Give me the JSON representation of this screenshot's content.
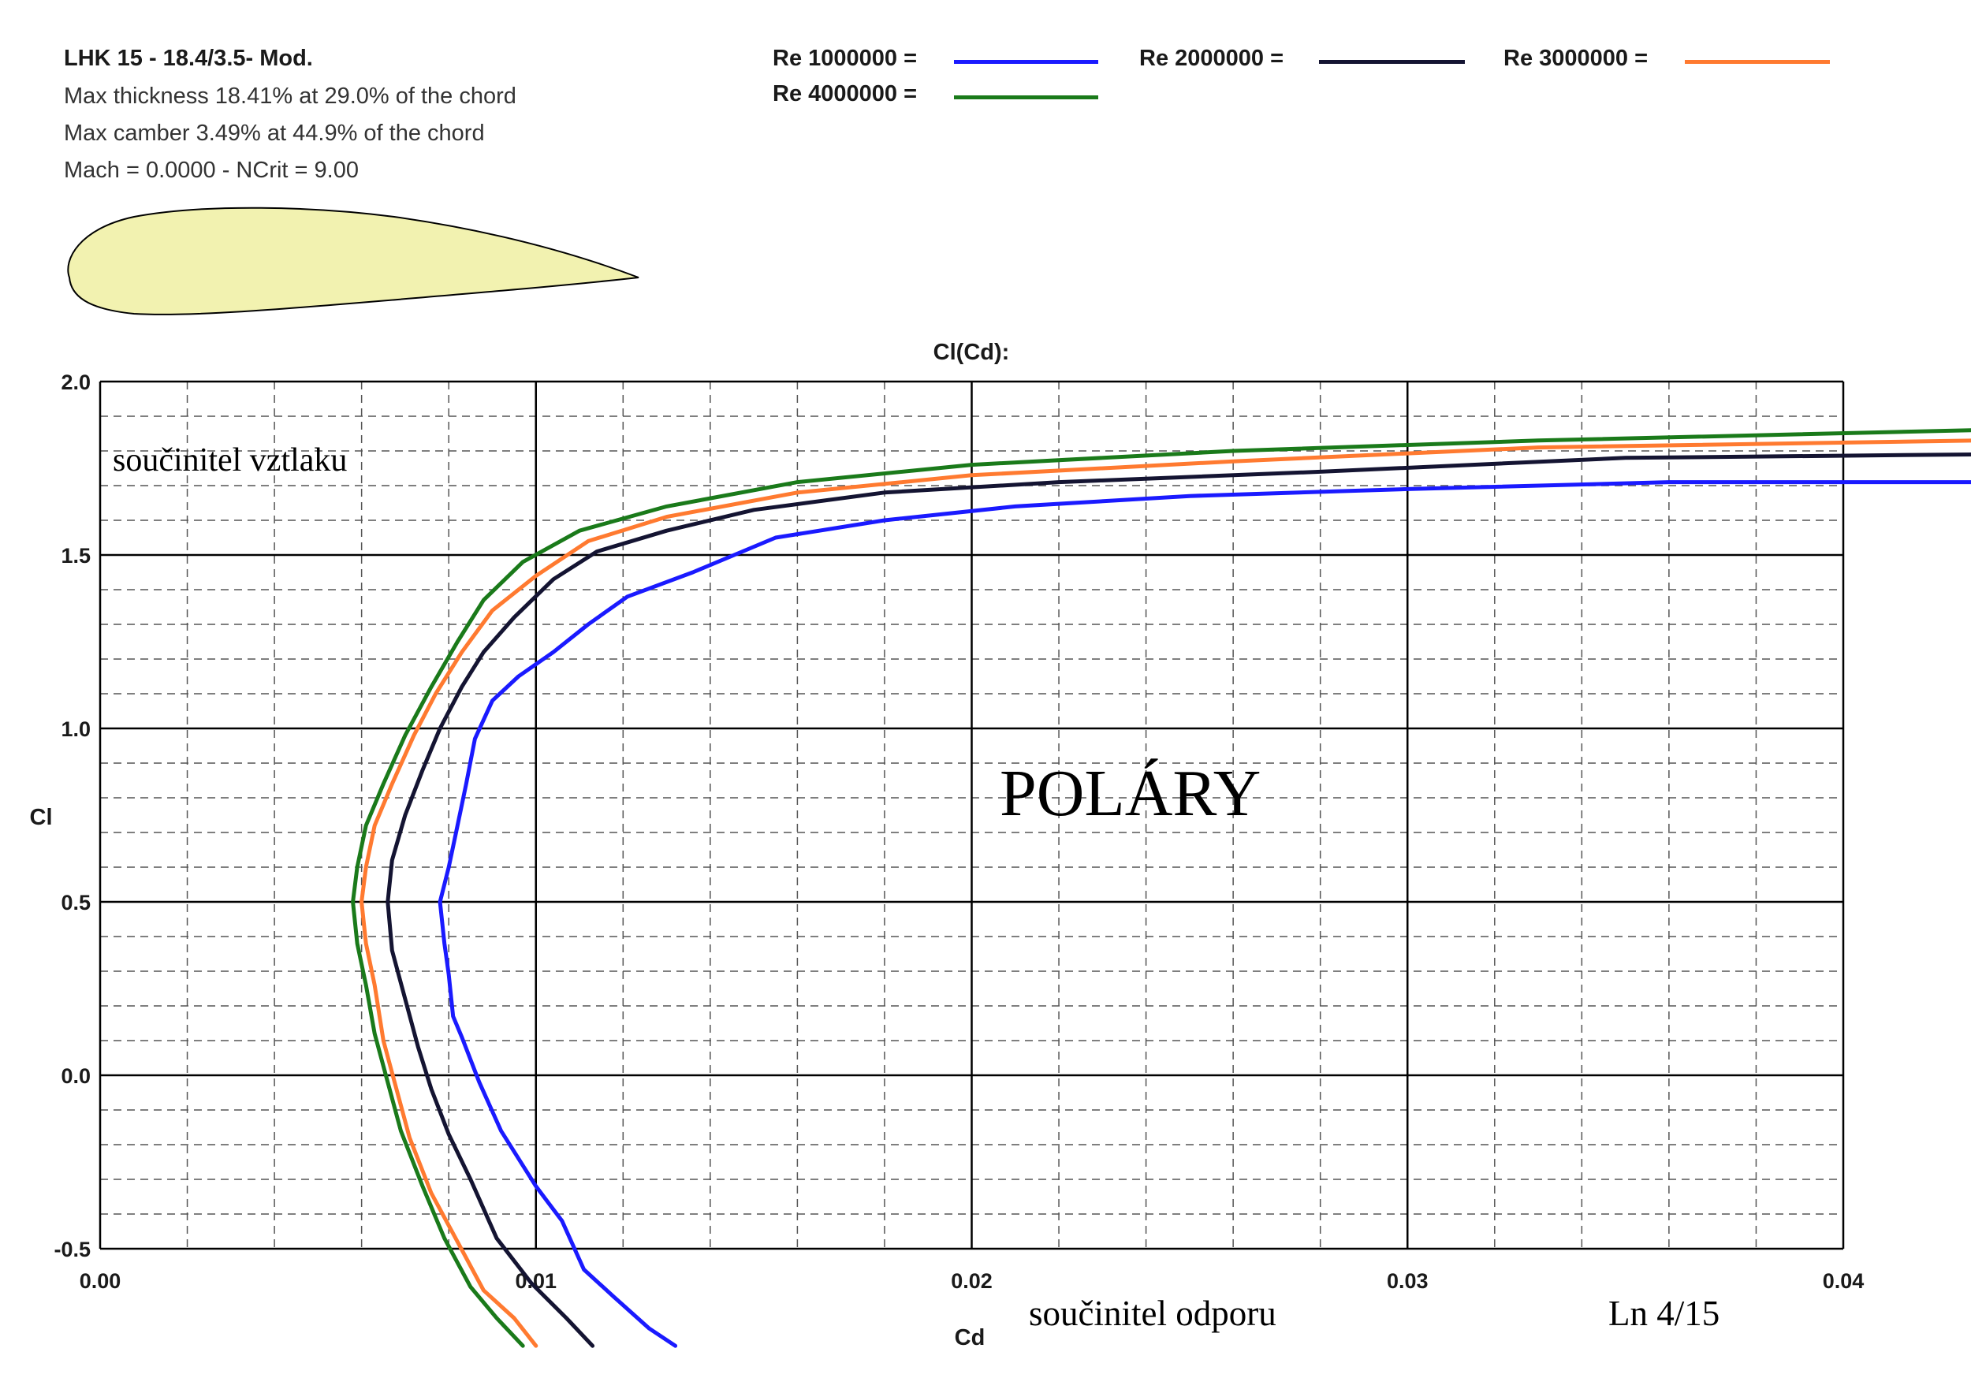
{
  "header": {
    "title": "LHK  15 - 18.4/3.5- Mod.",
    "lines": [
      "Max thickness 18.41% at 29.0% of the chord",
      "Max camber 3.49% at 44.9% of the chord",
      "Mach = 0.0000 - NCrit = 9.00"
    ]
  },
  "annotations": {
    "ylabel_text": "součinitel vztlaku",
    "xlabel_text": "součinitel  odporu",
    "center_text": "POLÁRY",
    "page_ref": "Ln 4/15"
  },
  "colors": {
    "airfoil_fill": "#f2f2b0",
    "grid_major": "#000000",
    "grid_minor": "#555555"
  },
  "chart_data": {
    "type": "line",
    "title": "Cl(Cd):",
    "xlabel": "Cd",
    "ylabel": "Cl",
    "xlim": [
      0.0,
      0.04
    ],
    "ylim": [
      -0.5,
      2.0
    ],
    "x_ticks": [
      "0.00",
      "0.01",
      "0.02",
      "0.03",
      "0.04"
    ],
    "y_ticks": [
      "-0.5",
      "0.0",
      "0.5",
      "1.0",
      "1.5",
      "2.0"
    ],
    "x_tick_values": [
      0.0,
      0.01,
      0.02,
      0.03,
      0.04
    ],
    "y_tick_values": [
      -0.5,
      0.0,
      0.5,
      1.0,
      1.5,
      2.0
    ],
    "grid": true,
    "legend_position": "top",
    "series": [
      {
        "name": "Re 1000000 =",
        "color": "#1a1aff",
        "points": [
          [
            0.0132,
            -0.78
          ],
          [
            0.0126,
            -0.73
          ],
          [
            0.0118,
            -0.64
          ],
          [
            0.0111,
            -0.56
          ],
          [
            0.0106,
            -0.42
          ],
          [
            0.01,
            -0.32
          ],
          [
            0.0092,
            -0.16
          ],
          [
            0.0087,
            -0.02
          ],
          [
            0.0083,
            0.11
          ],
          [
            0.0081,
            0.17
          ],
          [
            0.008,
            0.29
          ],
          [
            0.0079,
            0.38
          ],
          [
            0.0078,
            0.5
          ],
          [
            0.008,
            0.6
          ],
          [
            0.0082,
            0.72
          ],
          [
            0.0084,
            0.84
          ],
          [
            0.0086,
            0.97
          ],
          [
            0.009,
            1.08
          ],
          [
            0.0096,
            1.15
          ],
          [
            0.0104,
            1.22
          ],
          [
            0.0112,
            1.3
          ],
          [
            0.0121,
            1.38
          ],
          [
            0.0136,
            1.45
          ],
          [
            0.0155,
            1.55
          ],
          [
            0.018,
            1.6
          ],
          [
            0.021,
            1.64
          ],
          [
            0.025,
            1.67
          ],
          [
            0.03,
            1.69
          ],
          [
            0.036,
            1.71
          ],
          [
            0.043,
            1.71
          ]
        ]
      },
      {
        "name": "Re 2000000 =",
        "color": "#141432",
        "points": [
          [
            0.0113,
            -0.78
          ],
          [
            0.0107,
            -0.7
          ],
          [
            0.0099,
            -0.6
          ],
          [
            0.0091,
            -0.47
          ],
          [
            0.0085,
            -0.3
          ],
          [
            0.008,
            -0.17
          ],
          [
            0.0076,
            -0.04
          ],
          [
            0.0073,
            0.08
          ],
          [
            0.007,
            0.22
          ],
          [
            0.0067,
            0.36
          ],
          [
            0.0066,
            0.5
          ],
          [
            0.0067,
            0.62
          ],
          [
            0.007,
            0.75
          ],
          [
            0.0074,
            0.88
          ],
          [
            0.0078,
            1.0
          ],
          [
            0.0083,
            1.12
          ],
          [
            0.0088,
            1.22
          ],
          [
            0.0095,
            1.32
          ],
          [
            0.0104,
            1.43
          ],
          [
            0.0114,
            1.51
          ],
          [
            0.013,
            1.57
          ],
          [
            0.015,
            1.63
          ],
          [
            0.018,
            1.68
          ],
          [
            0.022,
            1.71
          ],
          [
            0.028,
            1.74
          ],
          [
            0.035,
            1.78
          ],
          [
            0.043,
            1.79
          ]
        ]
      },
      {
        "name": "Re 3000000 =",
        "color": "#ff7a30",
        "points": [
          [
            0.01,
            -0.78
          ],
          [
            0.0095,
            -0.7
          ],
          [
            0.0088,
            -0.62
          ],
          [
            0.0082,
            -0.48
          ],
          [
            0.0076,
            -0.34
          ],
          [
            0.0071,
            -0.18
          ],
          [
            0.0068,
            -0.04
          ],
          [
            0.0065,
            0.1
          ],
          [
            0.0063,
            0.26
          ],
          [
            0.0061,
            0.38
          ],
          [
            0.006,
            0.5
          ],
          [
            0.0061,
            0.6
          ],
          [
            0.0063,
            0.72
          ],
          [
            0.0067,
            0.84
          ],
          [
            0.0072,
            0.98
          ],
          [
            0.0077,
            1.1
          ],
          [
            0.0083,
            1.22
          ],
          [
            0.009,
            1.34
          ],
          [
            0.01,
            1.44
          ],
          [
            0.0112,
            1.54
          ],
          [
            0.013,
            1.61
          ],
          [
            0.016,
            1.68
          ],
          [
            0.02,
            1.73
          ],
          [
            0.026,
            1.77
          ],
          [
            0.033,
            1.81
          ],
          [
            0.043,
            1.83
          ]
        ]
      },
      {
        "name": "Re 4000000 =",
        "color": "#1a7a1a",
        "points": [
          [
            0.0097,
            -0.78
          ],
          [
            0.0091,
            -0.7
          ],
          [
            0.0085,
            -0.61
          ],
          [
            0.0079,
            -0.47
          ],
          [
            0.0074,
            -0.32
          ],
          [
            0.0069,
            -0.16
          ],
          [
            0.0066,
            -0.02
          ],
          [
            0.0063,
            0.12
          ],
          [
            0.0061,
            0.26
          ],
          [
            0.0059,
            0.38
          ],
          [
            0.0058,
            0.5
          ],
          [
            0.0059,
            0.6
          ],
          [
            0.0061,
            0.72
          ],
          [
            0.0065,
            0.84
          ],
          [
            0.007,
            0.98
          ],
          [
            0.0076,
            1.12
          ],
          [
            0.0082,
            1.25
          ],
          [
            0.0088,
            1.37
          ],
          [
            0.0097,
            1.48
          ],
          [
            0.011,
            1.57
          ],
          [
            0.013,
            1.64
          ],
          [
            0.016,
            1.71
          ],
          [
            0.02,
            1.76
          ],
          [
            0.026,
            1.8
          ],
          [
            0.033,
            1.83
          ],
          [
            0.043,
            1.86
          ]
        ]
      }
    ]
  }
}
